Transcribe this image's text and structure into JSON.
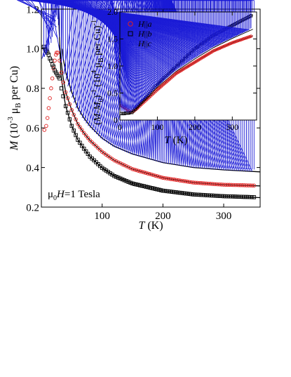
{
  "chart_data": [
    {
      "type": "scatter",
      "xlabel_symbol": "T",
      "xlabel_unit": " (K)",
      "ylabel_symbol": "M",
      "ylabel_unit_pre": " (10",
      "ylabel_exp": "-3",
      "ylabel_mu": " μ",
      "ylabel_mu_sub": "B",
      "ylabel_unit_post": " per Cu)",
      "xlim": [
        0,
        360
      ],
      "ylim": [
        0.2,
        1.2
      ],
      "xticks": [
        100,
        200,
        300
      ],
      "yticks": [
        0.2,
        0.4,
        0.6,
        0.8,
        1.0,
        1.2
      ],
      "ytick_labels": [
        "0.2",
        "0.4",
        "0.6",
        "0.8",
        "1.0",
        "1.2"
      ],
      "annotation": {
        "mu": "μ",
        "sub": "0",
        "rest_symbol": "H",
        "rest_text": "=1 Tesla"
      },
      "series": [
        {
          "key": "a",
          "marker": "circle",
          "color": "#e02020",
          "x": [
            5,
            8,
            10,
            12,
            14,
            16,
            18,
            20,
            22,
            24,
            25,
            27,
            30,
            33,
            36,
            40,
            50,
            60,
            70,
            80,
            100,
            120,
            150,
            200,
            250,
            300,
            350
          ],
          "y": [
            0.59,
            0.61,
            0.65,
            0.7,
            0.75,
            0.8,
            0.85,
            0.9,
            0.94,
            0.97,
            0.98,
            0.98,
            0.94,
            0.88,
            0.83,
            0.78,
            0.69,
            0.62,
            0.574,
            0.537,
            0.479,
            0.436,
            0.392,
            0.348,
            0.324,
            0.313,
            0.309
          ]
        },
        {
          "key": "b",
          "marker": "square",
          "color": "#000000",
          "x": [
            4,
            6,
            8,
            10,
            12,
            14,
            16,
            18,
            20,
            22,
            24,
            26,
            28,
            30,
            33,
            36,
            40,
            50,
            60,
            70,
            80,
            100,
            120,
            150,
            200,
            250,
            300,
            350
          ],
          "y": [
            1.01,
            1.0,
            0.99,
            0.98,
            0.97,
            0.95,
            0.94,
            0.92,
            0.91,
            0.89,
            0.88,
            0.87,
            0.86,
            0.85,
            0.8,
            0.76,
            0.71,
            0.61,
            0.54,
            0.495,
            0.455,
            0.398,
            0.357,
            0.319,
            0.283,
            0.264,
            0.255,
            0.25
          ]
        },
        {
          "key": "c",
          "marker": "triangle",
          "color": "#1a1ad6",
          "x": [
            4,
            8,
            12,
            16,
            18,
            20,
            22,
            24,
            25,
            27,
            28,
            30,
            33,
            36,
            40,
            50,
            60,
            70,
            80,
            100,
            120,
            150,
            200,
            250,
            300,
            350
          ],
          "y": [
            0.95,
            0.96,
            0.98,
            1.02,
            1.05,
            1.09,
            1.12,
            1.15,
            1.16,
            1.14,
            1.11,
            1.05,
            0.99,
            0.93,
            0.87,
            0.78,
            0.7,
            0.65,
            0.61,
            0.548,
            0.507,
            0.468,
            0.425,
            0.4,
            0.388,
            0.38
          ]
        }
      ],
      "fits": [
        {
          "key": "a",
          "x": [
            30,
            35,
            40,
            50,
            60,
            70,
            80,
            100,
            120,
            150,
            200,
            250,
            300,
            360
          ],
          "y": [
            1.02,
            0.87,
            0.78,
            0.69,
            0.62,
            0.574,
            0.537,
            0.479,
            0.436,
            0.392,
            0.348,
            0.324,
            0.313,
            0.307
          ]
        },
        {
          "key": "b",
          "x": [
            28,
            32,
            36,
            40,
            50,
            60,
            70,
            80,
            100,
            120,
            150,
            200,
            250,
            300,
            360
          ],
          "y": [
            1.2,
            0.88,
            0.78,
            0.71,
            0.61,
            0.54,
            0.495,
            0.455,
            0.398,
            0.357,
            0.319,
            0.283,
            0.264,
            0.255,
            0.248
          ]
        },
        {
          "key": "c",
          "x": [
            34,
            36,
            40,
            50,
            60,
            70,
            80,
            100,
            120,
            150,
            200,
            250,
            300,
            360
          ],
          "y": [
            1.0,
            0.95,
            0.88,
            0.78,
            0.7,
            0.65,
            0.61,
            0.548,
            0.507,
            0.468,
            0.425,
            0.4,
            0.388,
            0.378
          ]
        }
      ]
    },
    {
      "type": "scatter",
      "xlabel_symbol": "T",
      "xlabel_unit": " (K)",
      "ylabel_open": "(",
      "ylabel_M": "M",
      "ylabel_dash": "-",
      "ylabel_M0": "M",
      "ylabel_M0_sub": "0",
      "ylabel_close": ")",
      "ylabel_exp": "-1",
      "ylabel_unit_pre": " (10",
      "ylabel_exp2": "4",
      "ylabel_mu": " μ",
      "ylabel_mu_sub": "B",
      "ylabel_unit_post": " per Cu)",
      "ylabel_exp3": "-1",
      "xlim": [
        0,
        365
      ],
      "ylim": [
        0,
        2.0
      ],
      "xticks": [
        0,
        100,
        200,
        300
      ],
      "yticks": [
        0,
        0.5,
        1.0,
        1.5,
        2.0
      ],
      "ytick_labels": [
        "0",
        "0.5",
        "1.0",
        "1.5",
        "2.0"
      ],
      "legend_placement": "top-left",
      "legend": [
        {
          "key": "a",
          "pre": "H",
          "bar": "||",
          "axis": "a"
        },
        {
          "key": "b",
          "pre": "H",
          "bar": "||",
          "axis": "b"
        },
        {
          "key": "c",
          "pre": "H",
          "bar": "||",
          "axis": "c"
        }
      ],
      "series": [
        {
          "key": "a",
          "marker": "circle",
          "color": "#e02020",
          "x": [
            4,
            8,
            12,
            16,
            20,
            24,
            28,
            32,
            40,
            50,
            75,
            100,
            150,
            200,
            250,
            300,
            350
          ],
          "y": [
            0.27,
            0.25,
            0.23,
            0.21,
            0.19,
            0.17,
            0.15,
            0.14,
            0.18,
            0.24,
            0.4,
            0.56,
            0.86,
            1.07,
            1.28,
            1.43,
            1.55
          ]
        },
        {
          "key": "b",
          "marker": "square",
          "color": "#000000",
          "x": [
            4,
            8,
            12,
            16,
            20,
            24,
            28,
            32,
            40,
            50,
            75,
            100,
            150,
            200,
            250,
            300,
            350
          ],
          "y": [
            0.12,
            0.12,
            0.12,
            0.13,
            0.13,
            0.13,
            0.14,
            0.14,
            0.2,
            0.28,
            0.46,
            0.66,
            0.99,
            1.32,
            1.57,
            1.75,
            1.93
          ]
        },
        {
          "key": "c",
          "marker": "triangle",
          "color": "#1a1ad6",
          "x": [
            4,
            8,
            12,
            16,
            20,
            24,
            28,
            32,
            40,
            50,
            75,
            100,
            150,
            200,
            250,
            300,
            350
          ],
          "y": [
            0.16,
            0.16,
            0.16,
            0.15,
            0.15,
            0.14,
            0.14,
            0.14,
            0.18,
            0.25,
            0.42,
            0.6,
            0.9,
            1.13,
            1.34,
            1.51,
            1.67
          ]
        }
      ],
      "fits": [
        {
          "key": "a",
          "x": [
            32,
            50,
            75,
            100,
            150,
            200,
            250,
            300,
            355
          ],
          "y": [
            0.15,
            0.24,
            0.4,
            0.56,
            0.86,
            1.07,
            1.28,
            1.43,
            1.56
          ]
        },
        {
          "key": "b",
          "x": [
            30,
            50,
            75,
            100,
            150,
            200,
            250,
            300,
            355
          ],
          "y": [
            0.15,
            0.28,
            0.46,
            0.66,
            0.99,
            1.32,
            1.57,
            1.75,
            1.94
          ]
        },
        {
          "key": "c",
          "x": [
            32,
            50,
            75,
            100,
            150,
            200,
            250,
            300,
            355
          ],
          "y": [
            0.15,
            0.25,
            0.42,
            0.6,
            0.9,
            1.13,
            1.34,
            1.51,
            1.68
          ]
        }
      ]
    }
  ]
}
